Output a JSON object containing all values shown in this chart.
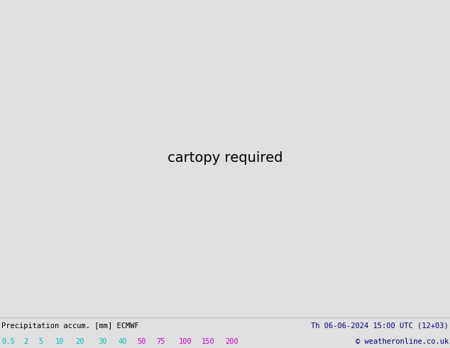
{
  "title_left": "Precipitation accum. [mm] ECMWF",
  "title_right": "Th 06-06-2024 15:00 UTC (12+03)",
  "copyright": "© weatheronline.co.uk",
  "legend_values": [
    "0.5",
    "2",
    "5",
    "10",
    "20",
    "30",
    "40",
    "50",
    "75",
    "100",
    "150",
    "200"
  ],
  "legend_text_colors": [
    "#00bbbb",
    "#00bbbb",
    "#00bbbb",
    "#00bbbb",
    "#00bbbb",
    "#00bbbb",
    "#00bbbb",
    "#cc00cc",
    "#cc00cc",
    "#cc00cc",
    "#cc00cc",
    "#cc00cc"
  ],
  "text_color_left": "#000000",
  "text_color_right": "#000080",
  "bg_color": "#e0e0e0",
  "sea_color": "#ddeeff",
  "land_color": "#c8f0a0",
  "precip_colors": {
    "0.5": "#aaf0f8",
    "2": "#80e0f0",
    "5": "#55ccee",
    "10": "#30b8e8",
    "20": "#00a0e0",
    "30": "#0080d0"
  },
  "lon_min": -12.0,
  "lon_max": 10.0,
  "lat_min": 47.0,
  "lat_max": 62.0,
  "fig_width": 6.34,
  "fig_height": 4.9,
  "dpi": 100,
  "map_extent": [
    -12.0,
    10.0,
    47.0,
    62.0
  ]
}
